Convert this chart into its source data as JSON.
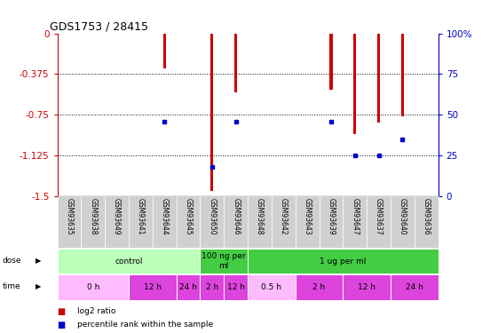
{
  "title": "GDS1753 / 28415",
  "samples": [
    "GSM93635",
    "GSM93638",
    "GSM93649",
    "GSM93641",
    "GSM93644",
    "GSM93645",
    "GSM93650",
    "GSM93646",
    "GSM93648",
    "GSM93642",
    "GSM93643",
    "GSM93639",
    "GSM93647",
    "GSM93637",
    "GSM93640",
    "GSM93636"
  ],
  "log2_ratio": [
    0,
    0,
    0,
    0,
    -0.32,
    0,
    -1.45,
    -0.54,
    0,
    0,
    0,
    -0.52,
    -0.93,
    -0.82,
    -0.76,
    0
  ],
  "percentile_rank": [
    null,
    null,
    null,
    null,
    46,
    null,
    18,
    46,
    null,
    null,
    null,
    46,
    25,
    25,
    35,
    null
  ],
  "ylim_left": [
    -1.5,
    0
  ],
  "ylim_right": [
    0,
    100
  ],
  "yticks_left": [
    0,
    -0.375,
    -0.75,
    -1.125,
    -1.5
  ],
  "yticks_right": [
    100,
    75,
    50,
    25,
    0
  ],
  "bar_color": "#cc0000",
  "percentile_color": "#0000cc",
  "dose_groups": [
    {
      "label": "control",
      "start": 0,
      "end": 6,
      "color": "#bbffbb"
    },
    {
      "label": "100 ng per\nml",
      "start": 6,
      "end": 8,
      "color": "#44cc44"
    },
    {
      "label": "1 ug per ml",
      "start": 8,
      "end": 16,
      "color": "#44cc44"
    }
  ],
  "time_groups": [
    {
      "label": "0 h",
      "start": 0,
      "end": 3,
      "color": "#ffbbff"
    },
    {
      "label": "12 h",
      "start": 3,
      "end": 5,
      "color": "#dd44dd"
    },
    {
      "label": "24 h",
      "start": 5,
      "end": 6,
      "color": "#dd44dd"
    },
    {
      "label": "2 h",
      "start": 6,
      "end": 7,
      "color": "#dd44dd"
    },
    {
      "label": "12 h",
      "start": 7,
      "end": 8,
      "color": "#dd44dd"
    },
    {
      "label": "0.5 h",
      "start": 8,
      "end": 10,
      "color": "#ffbbff"
    },
    {
      "label": "2 h",
      "start": 10,
      "end": 12,
      "color": "#dd44dd"
    },
    {
      "label": "12 h",
      "start": 12,
      "end": 14,
      "color": "#dd44dd"
    },
    {
      "label": "24 h",
      "start": 14,
      "end": 16,
      "color": "#dd44dd"
    }
  ],
  "legend_items": [
    {
      "color": "#cc0000",
      "label": "log2 ratio"
    },
    {
      "color": "#0000cc",
      "label": "percentile rank within the sample"
    }
  ],
  "background_color": "#ffffff",
  "left_axis_color": "#cc0000",
  "right_axis_color": "#0000cc",
  "label_bg_color": "#d0d0d0"
}
